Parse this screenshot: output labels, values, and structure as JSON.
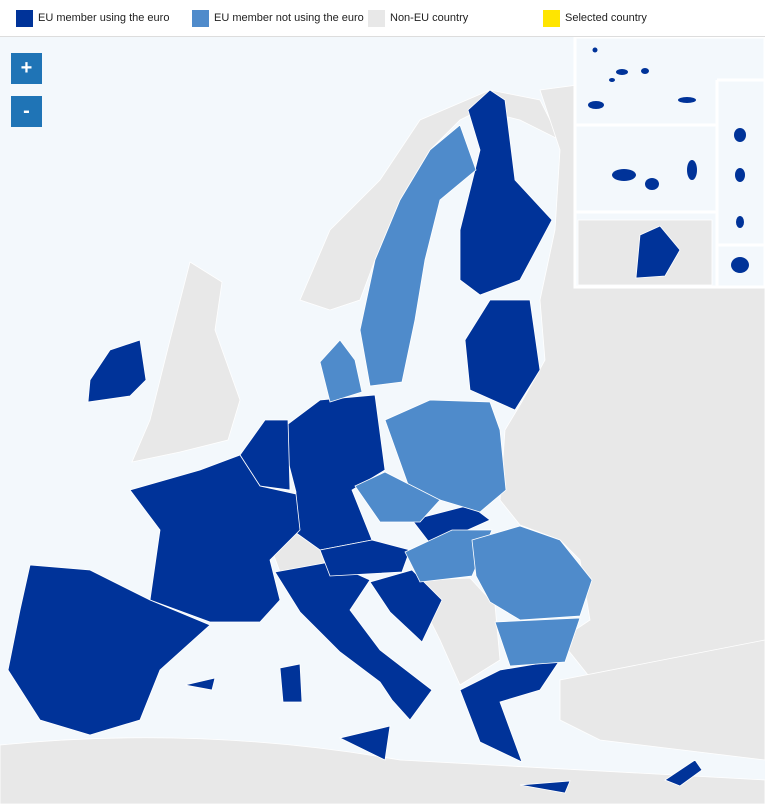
{
  "legend": [
    {
      "label": "EU member using the euro",
      "color": "#003399"
    },
    {
      "label": "EU member not using the euro",
      "color": "#4f8bcb"
    },
    {
      "label": "Non-EU country",
      "color": "#e8e8e8"
    },
    {
      "label": "Selected country",
      "color": "#ffe500"
    }
  ],
  "zoom": {
    "in": "+",
    "out": "-"
  }
}
